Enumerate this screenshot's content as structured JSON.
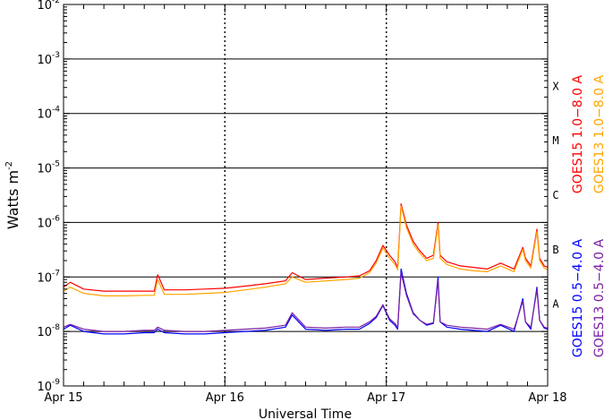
{
  "chart_data": {
    "type": "line",
    "title": "",
    "xlabel": "Universal Time",
    "ylabel": "Watts m",
    "ylabel_sup": "-2",
    "yscale": "log",
    "ylim": [
      1e-09,
      0.01
    ],
    "y_ticks": [
      {
        "value": 1e-09,
        "base": "10",
        "exp": "-9"
      },
      {
        "value": 1e-08,
        "base": "10",
        "exp": "-8"
      },
      {
        "value": 1e-07,
        "base": "10",
        "exp": "-7"
      },
      {
        "value": 1e-06,
        "base": "10",
        "exp": "-6"
      },
      {
        "value": 1e-05,
        "base": "10",
        "exp": "-5"
      },
      {
        "value": 0.0001,
        "base": "10",
        "exp": "-4"
      },
      {
        "value": 0.001,
        "base": "10",
        "exp": "-3"
      },
      {
        "value": 0.01,
        "base": "10",
        "exp": "-2"
      }
    ],
    "x_unit": "hours since Apr 15 00:00 UT",
    "xlim": [
      0,
      72
    ],
    "x_ticks": [
      {
        "value": 0,
        "label": "Apr 15"
      },
      {
        "value": 24,
        "label": "Apr 16"
      },
      {
        "value": 48,
        "label": "Apr 17"
      },
      {
        "value": 72,
        "label": "Apr 18"
      }
    ],
    "horizontal_lines": [
      0.001,
      0.0001,
      1e-05,
      1e-06,
      1e-07,
      1e-08
    ],
    "flare_classes": [
      {
        "label": "X",
        "level": 0.0001
      },
      {
        "label": "M",
        "level": 1e-05
      },
      {
        "label": "C",
        "level": 1e-06
      },
      {
        "label": "B",
        "level": 1e-07
      },
      {
        "label": "A",
        "level": 1e-08
      }
    ],
    "grid": "horizontal lines at decades, dotted vertical lines at day boundaries",
    "legend_position": "right",
    "series": [
      {
        "name": "GOES15 1.0−8.0 A",
        "color": "#ff0000",
        "x": [
          0,
          1,
          3,
          6,
          9,
          12,
          13.5,
          14,
          15,
          18,
          21,
          24,
          27,
          30,
          33,
          34,
          36,
          39,
          42,
          44,
          45.5,
          46.5,
          47.5,
          48.5,
          49.3,
          49.7,
          50.2,
          51,
          52,
          53,
          54,
          55,
          55.7,
          56,
          57,
          59,
          61,
          63,
          65,
          67,
          68.3,
          68.7,
          69.5,
          70.4,
          70.8,
          71.5,
          72
        ],
        "y": [
          6.5e-08,
          8e-08,
          6e-08,
          5.5e-08,
          5.5e-08,
          5.5e-08,
          5.5e-08,
          1.1e-07,
          5.8e-08,
          5.8e-08,
          6e-08,
          6.2e-08,
          6.8e-08,
          7.5e-08,
          8.5e-08,
          1.2e-07,
          9e-08,
          9.5e-08,
          1e-07,
          1.05e-07,
          1.3e-07,
          2e-07,
          3.8e-07,
          2.5e-07,
          1.9e-07,
          1.5e-07,
          2.2e-06,
          9e-07,
          4.5e-07,
          3e-07,
          2.2e-07,
          2.5e-07,
          1e-06,
          2.5e-07,
          1.9e-07,
          1.6e-07,
          1.5e-07,
          1.4e-07,
          1.8e-07,
          1.4e-07,
          3.5e-07,
          2.2e-07,
          1.6e-07,
          7.5e-07,
          2.2e-07,
          1.6e-07,
          1.5e-07
        ]
      },
      {
        "name": "GOES13 1.0−8.0 A",
        "color": "#ffa500",
        "x": [
          0,
          1,
          3,
          6,
          9,
          12,
          13.5,
          14,
          15,
          18,
          21,
          24,
          27,
          30,
          33,
          34,
          36,
          39,
          42,
          44,
          45.5,
          46.5,
          47.5,
          48.5,
          49.3,
          49.7,
          50.2,
          51,
          52,
          53,
          54,
          55,
          55.7,
          56,
          57,
          59,
          61,
          63,
          65,
          67,
          68.3,
          68.7,
          69.5,
          70.4,
          70.8,
          71.5,
          72
        ],
        "y": [
          5.5e-08,
          6.5e-08,
          5e-08,
          4.5e-08,
          4.5e-08,
          4.6e-08,
          4.6e-08,
          9e-08,
          4.8e-08,
          4.8e-08,
          5e-08,
          5.2e-08,
          5.8e-08,
          6.5e-08,
          7.5e-08,
          1e-07,
          8e-08,
          8.5e-08,
          9e-08,
          9.5e-08,
          1.2e-07,
          1.8e-07,
          3.4e-07,
          2.2e-07,
          1.7e-07,
          1.35e-07,
          2e-06,
          8e-07,
          4e-07,
          2.7e-07,
          2e-07,
          2.2e-07,
          9e-07,
          2.2e-07,
          1.7e-07,
          1.4e-07,
          1.3e-07,
          1.25e-07,
          1.6e-07,
          1.25e-07,
          3.2e-07,
          2e-07,
          1.45e-07,
          6.8e-07,
          2e-07,
          1.45e-07,
          1.35e-07
        ]
      },
      {
        "name": "GOES15 0.5−4.0 A",
        "color": "#0000ff",
        "x": [
          0,
          1,
          3,
          6,
          9,
          12,
          13.5,
          14,
          15,
          18,
          21,
          24,
          27,
          30,
          33,
          34,
          36,
          39,
          42,
          44,
          45.5,
          46.5,
          47.5,
          48.5,
          49.3,
          49.7,
          50.2,
          51,
          52,
          53,
          54,
          55,
          55.7,
          56,
          57,
          59,
          61,
          63,
          65,
          67,
          68.3,
          68.7,
          69.5,
          70.4,
          70.8,
          71.5,
          72
        ],
        "y": [
          1.1e-08,
          1.3e-08,
          1e-08,
          9e-09,
          9e-09,
          9.5e-09,
          9.5e-09,
          1.1e-08,
          9.5e-09,
          9e-09,
          9e-09,
          9.5e-09,
          1e-08,
          1.05e-08,
          1.2e-08,
          2e-08,
          1.1e-08,
          1.05e-08,
          1.1e-08,
          1.1e-08,
          1.4e-08,
          1.8e-08,
          3e-08,
          1.6e-08,
          1.3e-08,
          1.1e-08,
          1.4e-07,
          5e-08,
          2.2e-08,
          1.6e-08,
          1.3e-08,
          1.4e-08,
          1e-07,
          1.5e-08,
          1.2e-08,
          1.1e-08,
          1.05e-08,
          1e-08,
          1.3e-08,
          1e-08,
          4e-08,
          1.5e-08,
          1.1e-08,
          6.5e-08,
          1.6e-08,
          1.15e-08,
          1.1e-08
        ]
      },
      {
        "name": "GOES13 0.5−4.0 A",
        "color": "#7b1fa2",
        "x": [
          0,
          1,
          3,
          6,
          9,
          12,
          13.5,
          14,
          15,
          18,
          21,
          24,
          27,
          30,
          33,
          34,
          36,
          39,
          42,
          44,
          45.5,
          46.5,
          47.5,
          48.5,
          49.3,
          49.7,
          50.2,
          51,
          52,
          53,
          54,
          55,
          55.7,
          56,
          57,
          59,
          61,
          63,
          65,
          67,
          68.3,
          68.7,
          69.5,
          70.4,
          70.8,
          71.5,
          72
        ],
        "y": [
          1.2e-08,
          1.35e-08,
          1.1e-08,
          1e-08,
          1e-08,
          1.05e-08,
          1.05e-08,
          1.2e-08,
          1.05e-08,
          1e-08,
          1e-08,
          1.05e-08,
          1.1e-08,
          1.15e-08,
          1.3e-08,
          2.2e-08,
          1.2e-08,
          1.15e-08,
          1.2e-08,
          1.2e-08,
          1.5e-08,
          1.9e-08,
          3.1e-08,
          1.7e-08,
          1.4e-08,
          1.2e-08,
          1.2e-07,
          4.6e-08,
          2.1e-08,
          1.6e-08,
          1.35e-08,
          1.45e-08,
          8.5e-08,
          1.5e-08,
          1.3e-08,
          1.2e-08,
          1.15e-08,
          1.1e-08,
          1.35e-08,
          1.1e-08,
          3.6e-08,
          1.5e-08,
          1.2e-08,
          5.8e-08,
          1.6e-08,
          1.2e-08,
          1.15e-08
        ]
      }
    ],
    "legend": [
      {
        "label": "GOES15 1.0−8.0 A",
        "color": "#ff0000"
      },
      {
        "label": "GOES13 1.0−8.0 A",
        "color": "#ffa500"
      },
      {
        "label": "GOES15 0.5−4.0 A",
        "color": "#0000ff"
      },
      {
        "label": "GOES13 0.5−4.0 A",
        "color": "#7b1fa2"
      }
    ]
  }
}
